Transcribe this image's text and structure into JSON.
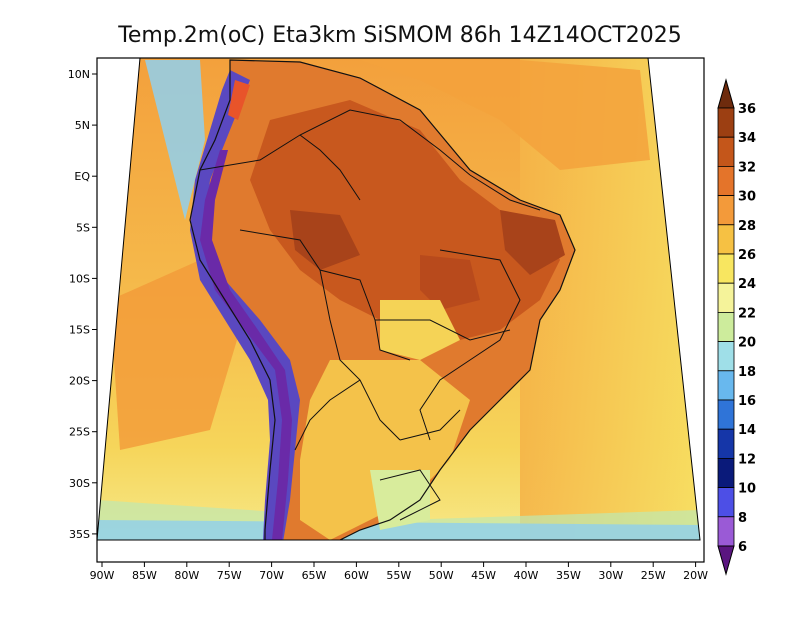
{
  "title": "Temp.2m(oC) Eta3km SiSMOM 86h 14Z14OCT2025",
  "lat_ticks": [
    "10N",
    "5N",
    "EQ",
    "5S",
    "10S",
    "15S",
    "20S",
    "25S",
    "30S",
    "35S"
  ],
  "lon_ticks": [
    "90W",
    "85W",
    "80W",
    "75W",
    "70W",
    "65W",
    "60W",
    "55W",
    "50W",
    "45W",
    "40W",
    "35W",
    "30W",
    "25W",
    "20W"
  ],
  "colorbar": {
    "labels": [
      "36",
      "34",
      "32",
      "30",
      "28",
      "26",
      "24",
      "22",
      "20",
      "18",
      "16",
      "14",
      "12",
      "10",
      "8",
      "6"
    ],
    "colors": [
      "#6e2b0d",
      "#9c3f12",
      "#c4561a",
      "#e4742a",
      "#f39a3a",
      "#f6c143",
      "#f8e660",
      "#f5f39a",
      "#cdec9c",
      "#9fdfe8",
      "#68b8ee",
      "#2f74d8",
      "#1536a8",
      "#0a1a7a",
      "#4d4fe6",
      "#9a5ad6",
      "#b03ec0",
      "#7a1f9e",
      "#5a1580"
    ]
  },
  "colors": {
    "ocean_warm": "#f6b14a",
    "ocean_mild": "#f7da5c",
    "land_hot": "#d8642a",
    "land_very_hot": "#b84a1c",
    "andes": "#4a3aa8",
    "cool_coast": "#9fd3e6"
  }
}
